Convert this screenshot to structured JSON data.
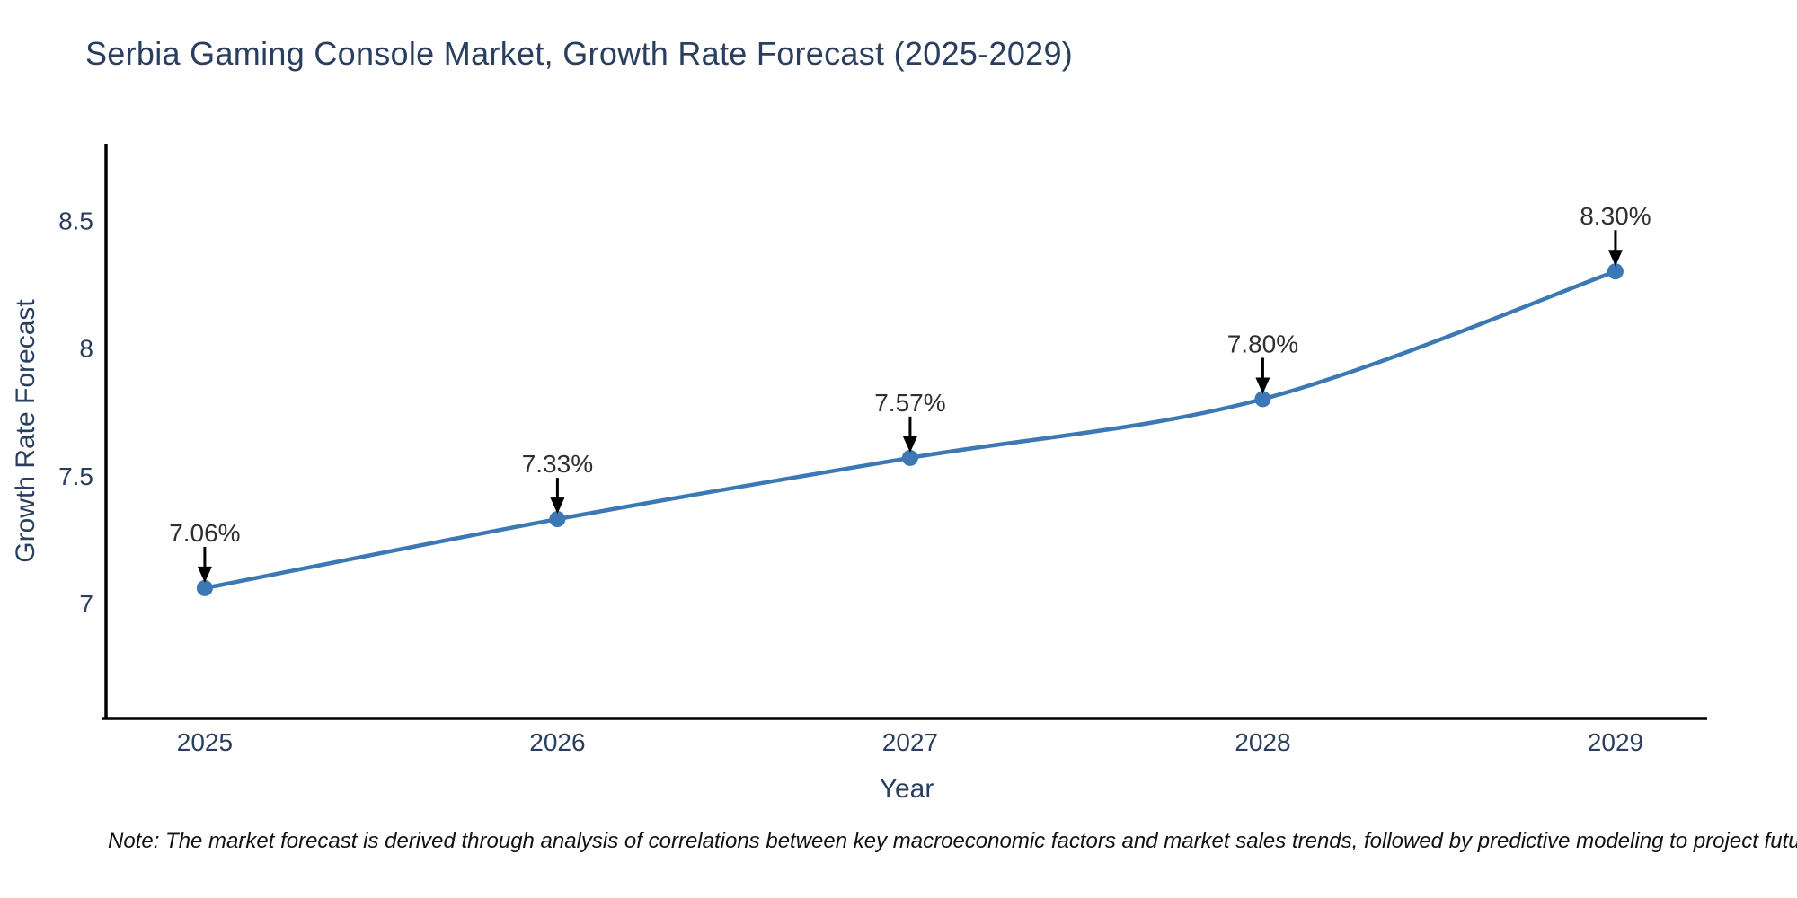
{
  "chart_data": {
    "type": "line",
    "title": "Serbia Gaming Console Market, Growth Rate Forecast (2025-2029)",
    "xlabel": "Year",
    "ylabel": "Growth Rate Forecast",
    "x": [
      2025,
      2026,
      2027,
      2028,
      2029
    ],
    "values": [
      7.06,
      7.33,
      7.57,
      7.8,
      8.3
    ],
    "point_labels": [
      "7.06%",
      "7.33%",
      "7.57%",
      "7.80%",
      "8.30%"
    ],
    "xticks": [
      2025,
      2026,
      2027,
      2028,
      2029
    ],
    "yticks": [
      7,
      7.5,
      8,
      8.5
    ],
    "xlim": [
      2024.72,
      2029.26
    ],
    "ylim": [
      6.55,
      8.8
    ],
    "grid": false,
    "legend": false,
    "line_shape": "spline",
    "annotations_have_arrows": true,
    "colors": {
      "line": "#3c78b4",
      "marker": "#3c78b4",
      "axis_line": "#000000",
      "label_text": "#2a3f5f",
      "annotation_text": "#2f2f2f",
      "annotation_arrow": "#000000",
      "background": "#ffffff"
    }
  },
  "footnote": {
    "text": "Note: The market forecast is derived through analysis of correlations between key macroeconomic factors and market sales trends, followed by predictive modeling to project future sales"
  }
}
